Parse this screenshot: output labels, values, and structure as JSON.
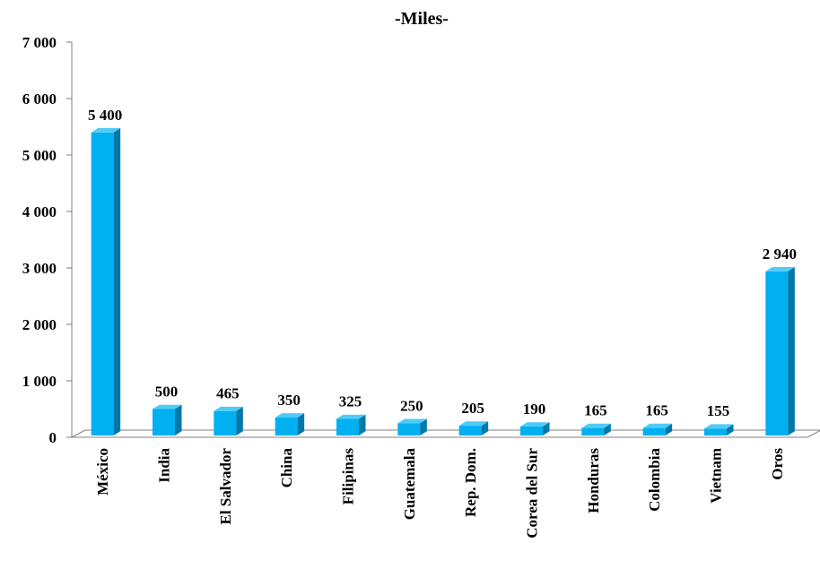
{
  "chart_data": {
    "type": "bar",
    "title": "-Miles-",
    "xlabel": "",
    "ylabel": "",
    "ylim": [
      0,
      7000
    ],
    "yticks": [
      0,
      1000,
      2000,
      3000,
      4000,
      5000,
      6000,
      7000
    ],
    "ytick_labels": [
      "0",
      "1 000",
      "2 000",
      "3 000",
      "4 000",
      "5 000",
      "6 000",
      "7 000"
    ],
    "grid": false,
    "categories": [
      "México",
      "India",
      "El Salvador",
      "China",
      "Filipinas",
      "Guatemala",
      "Rep. Dom.",
      "Corea del Sur",
      "Honduras",
      "Colombia",
      "Vietnam",
      "Oros"
    ],
    "values": [
      5400,
      500,
      465,
      350,
      325,
      250,
      205,
      190,
      165,
      165,
      155,
      2940
    ],
    "value_labels": [
      "5 400",
      "500",
      "465",
      "350",
      "325",
      "250",
      "205",
      "190",
      "165",
      "165",
      "155",
      "2 940"
    ],
    "colors": {
      "bar_front": "#00B0F0",
      "bar_side": "#0079A8",
      "bar_top": "#4FCBF7",
      "axis": "#808080"
    }
  }
}
